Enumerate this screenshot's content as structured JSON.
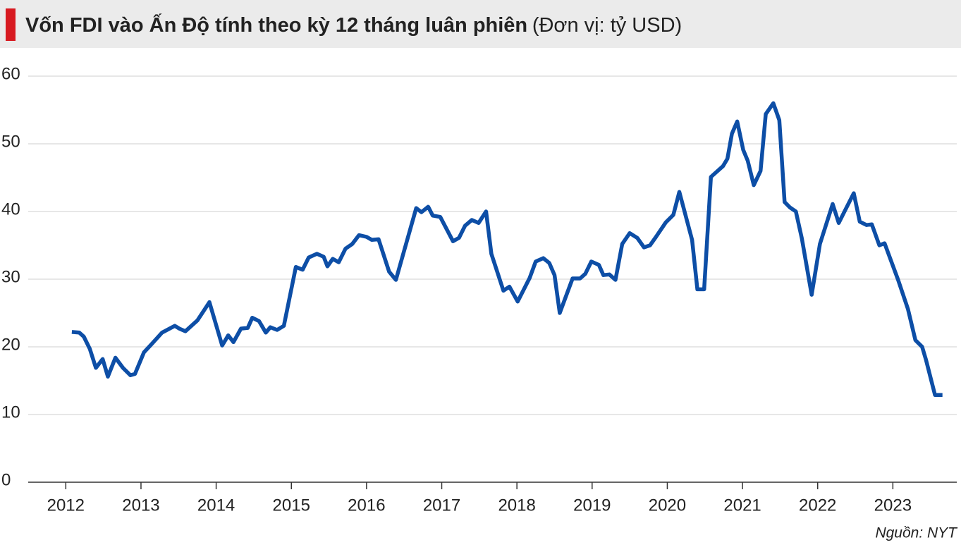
{
  "chart_data": {
    "type": "line",
    "title": "Vốn FDI vào Ấn Độ tính theo kỳ 12 tháng luân phiên",
    "subtitle": "(Đơn vị: tỷ USD)",
    "source": "Nguồn: NYT",
    "x": [
      2012.08,
      2012.18,
      2012.24,
      2012.32,
      2012.4,
      2012.49,
      2012.56,
      2012.66,
      2012.76,
      2012.86,
      2012.92,
      2013.04,
      2013.14,
      2013.28,
      2013.45,
      2013.51,
      2013.59,
      2013.75,
      2013.91,
      2014.08,
      2014.16,
      2014.23,
      2014.33,
      2014.42,
      2014.48,
      2014.57,
      2014.66,
      2014.72,
      2014.81,
      2014.9,
      2015.06,
      2015.15,
      2015.23,
      2015.34,
      2015.43,
      2015.48,
      2015.55,
      2015.63,
      2015.72,
      2015.81,
      2015.9,
      2016.0,
      2016.07,
      2016.16,
      2016.3,
      2016.39,
      2016.66,
      2016.73,
      2016.82,
      2016.88,
      2016.98,
      2017.15,
      2017.23,
      2017.31,
      2017.4,
      2017.49,
      2017.59,
      2017.66,
      2017.82,
      2017.9,
      2018.01,
      2018.17,
      2018.25,
      2018.35,
      2018.43,
      2018.5,
      2018.57,
      2018.74,
      2018.84,
      2018.91,
      2018.99,
      2019.09,
      2019.15,
      2019.23,
      2019.31,
      2019.4,
      2019.5,
      2019.6,
      2019.69,
      2019.77,
      2019.85,
      2019.98,
      2020.08,
      2020.16,
      2020.33,
      2020.4,
      2020.49,
      2020.58,
      2020.74,
      2020.8,
      2020.86,
      2020.93,
      2021.01,
      2021.07,
      2021.15,
      2021.24,
      2021.31,
      2021.41,
      2021.49,
      2021.56,
      2021.63,
      2021.71,
      2021.79,
      2021.92,
      2022.03,
      2022.2,
      2022.28,
      2022.38,
      2022.48,
      2022.56,
      2022.65,
      2022.72,
      2022.82,
      2022.89,
      2023.07,
      2023.2,
      2023.3,
      2023.39,
      2023.44,
      2023.56,
      2023.66
    ],
    "series": [
      {
        "name": "FDI",
        "color": "#0d4ea6",
        "values": [
          22.2,
          22.1,
          21.5,
          19.7,
          16.9,
          18.2,
          15.6,
          18.4,
          16.9,
          15.8,
          16.0,
          19.2,
          20.4,
          22.1,
          23.1,
          22.7,
          22.3,
          23.9,
          26.6,
          20.2,
          21.7,
          20.7,
          22.7,
          22.8,
          24.3,
          23.8,
          22.1,
          22.9,
          22.5,
          23.1,
          31.8,
          31.4,
          33.2,
          33.75,
          33.3,
          31.9,
          33.0,
          32.5,
          34.5,
          35.2,
          36.5,
          36.25,
          35.8,
          35.9,
          31.1,
          29.9,
          40.5,
          39.9,
          40.7,
          39.4,
          39.2,
          35.6,
          36.1,
          37.9,
          38.75,
          38.3,
          40.0,
          33.75,
          28.3,
          28.9,
          26.7,
          30.2,
          32.6,
          33.1,
          32.4,
          30.6,
          25.0,
          30.1,
          30.1,
          30.8,
          32.6,
          32.1,
          30.6,
          30.7,
          29.9,
          35.2,
          36.8,
          36.1,
          34.7,
          35.0,
          36.25,
          38.4,
          39.5,
          42.9,
          35.8,
          28.5,
          28.5,
          45.1,
          46.7,
          47.8,
          51.5,
          53.3,
          49.1,
          47.5,
          43.9,
          46.0,
          54.4,
          56.0,
          53.5,
          41.4,
          40.6,
          40.0,
          36.0,
          27.7,
          35.2,
          41.1,
          38.3,
          40.5,
          42.7,
          38.5,
          38.0,
          38.1,
          35.0,
          35.3,
          29.9,
          25.6,
          21.0,
          20.0,
          18.1,
          12.9,
          12.9
        ]
      }
    ],
    "xlim": [
      2011.5,
      2023.85
    ],
    "xticks": [
      2012,
      2013,
      2014,
      2015,
      2016,
      2017,
      2018,
      2019,
      2020,
      2021,
      2022,
      2023
    ],
    "ylim": [
      0,
      60
    ],
    "yticks": [
      0,
      10,
      20,
      30,
      40,
      50,
      60
    ],
    "grid": true
  }
}
